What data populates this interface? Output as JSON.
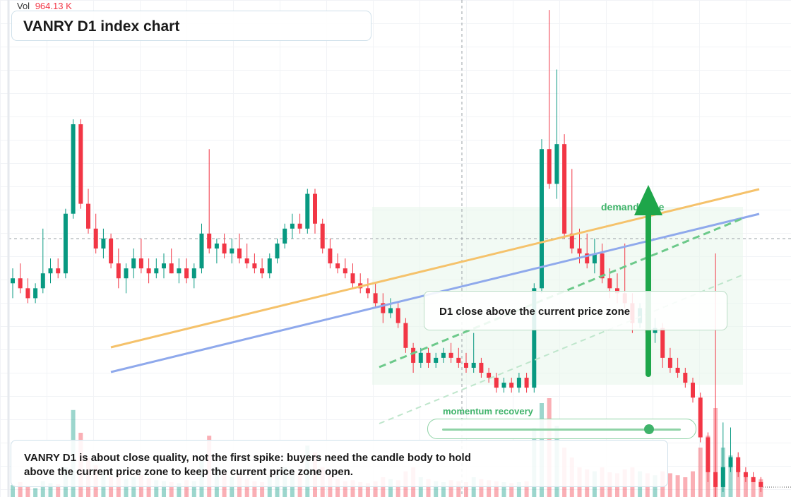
{
  "chart_data": {
    "type": "candlestick",
    "title": "VANRY D1 index chart",
    "volume_label": "Vol",
    "volume_value": "964.13 K",
    "ylim": [
      0,
      100
    ],
    "up_color": "#089981",
    "down_color": "#f23645",
    "open": [
      43,
      44,
      42,
      40,
      42,
      45,
      46,
      45,
      57,
      75,
      59,
      54,
      50,
      52,
      47,
      44,
      46,
      48,
      46,
      45,
      46,
      47,
      45,
      46,
      44,
      46,
      53,
      50,
      51,
      49,
      50,
      48,
      47,
      46,
      45,
      48,
      51,
      54,
      55,
      54,
      61,
      55,
      50,
      47,
      46,
      45,
      43,
      42,
      41,
      39,
      37,
      38,
      35,
      30,
      27,
      29,
      27,
      28,
      29,
      28,
      27,
      26,
      27,
      25,
      24,
      22,
      23,
      22,
      24,
      22,
      42,
      70,
      63,
      71,
      53,
      50,
      49,
      47,
      49,
      44,
      42,
      41,
      39,
      35,
      38,
      33,
      34,
      28,
      26,
      25,
      23,
      20,
      12,
      5,
      2,
      6,
      8,
      5,
      4,
      3
    ],
    "high": [
      46,
      47,
      44,
      43,
      54,
      48,
      48,
      58,
      76,
      76,
      62,
      57,
      54,
      53,
      50,
      47,
      50,
      52,
      48,
      48,
      49,
      50,
      48,
      48,
      47,
      55,
      70,
      52,
      53,
      52,
      53,
      51,
      49,
      48,
      49,
      52,
      55,
      57,
      57,
      62,
      62,
      56,
      52,
      49,
      48,
      47,
      45,
      44,
      43,
      41,
      40,
      39,
      36,
      31,
      30,
      30,
      29,
      30,
      31,
      30,
      29,
      33,
      28,
      26,
      25,
      24,
      24,
      25,
      25,
      43,
      72,
      98,
      86,
      73,
      66,
      54,
      53,
      52,
      51,
      46,
      45,
      51,
      41,
      39,
      40,
      36,
      35,
      30,
      28,
      26,
      24,
      21,
      13,
      49,
      15,
      14,
      9,
      6,
      5,
      4
    ],
    "low": [
      40,
      41,
      39,
      39,
      41,
      43,
      44,
      44,
      56,
      58,
      53,
      49,
      48,
      46,
      42,
      41,
      44,
      45,
      43,
      44,
      44,
      45,
      43,
      43,
      42,
      45,
      49,
      47,
      48,
      47,
      47,
      46,
      45,
      44,
      44,
      47,
      50,
      52,
      53,
      53,
      53,
      49,
      46,
      45,
      44,
      42,
      41,
      40,
      38,
      35,
      36,
      34,
      29,
      25,
      26,
      26,
      26,
      27,
      27,
      26,
      25,
      25,
      24,
      23,
      21,
      21,
      21,
      21,
      21,
      21,
      41,
      62,
      60,
      52,
      49,
      47,
      46,
      45,
      43,
      40,
      39,
      38,
      33,
      34,
      32,
      31,
      26,
      25,
      24,
      22,
      19,
      11,
      3,
      0,
      1,
      5,
      4,
      3,
      3,
      1
    ],
    "close": [
      44,
      42,
      40,
      42,
      45,
      46,
      45,
      57,
      75,
      59,
      54,
      50,
      52,
      47,
      44,
      46,
      48,
      46,
      45,
      46,
      47,
      45,
      46,
      44,
      46,
      53,
      50,
      51,
      49,
      50,
      48,
      47,
      46,
      45,
      48,
      51,
      54,
      55,
      54,
      61,
      55,
      50,
      47,
      46,
      45,
      43,
      42,
      41,
      39,
      37,
      38,
      35,
      30,
      27,
      29,
      27,
      28,
      29,
      28,
      27,
      26,
      27,
      25,
      24,
      22,
      23,
      22,
      24,
      22,
      42,
      70,
      63,
      71,
      53,
      50,
      49,
      47,
      49,
      44,
      42,
      41,
      39,
      35,
      38,
      33,
      34,
      28,
      26,
      25,
      23,
      20,
      12,
      5,
      2,
      6,
      8,
      5,
      4,
      3,
      2
    ],
    "volume": [
      120,
      150,
      110,
      90,
      160,
      140,
      130,
      300,
      880,
      650,
      400,
      320,
      260,
      210,
      240,
      180,
      200,
      220,
      190,
      170,
      160,
      150,
      140,
      170,
      160,
      380,
      620,
      300,
      250,
      200,
      220,
      180,
      160,
      150,
      210,
      260,
      300,
      280,
      240,
      520,
      450,
      300,
      220,
      180,
      160,
      170,
      150,
      140,
      160,
      200,
      180,
      170,
      260,
      300,
      200,
      180,
      160,
      150,
      170,
      160,
      150,
      200,
      180,
      170,
      160,
      150,
      140,
      150,
      160,
      700,
      950,
      1000,
      720,
      500,
      400,
      300,
      280,
      260,
      300,
      250,
      240,
      280,
      300,
      260,
      240,
      220,
      260,
      240,
      220,
      200,
      260,
      500,
      620,
      900,
      500,
      420,
      300,
      240,
      200,
      180
    ],
    "annotations": {
      "zone_label": "demand zone",
      "callout": "D1 close above the current price zone",
      "momentum_label": "momentum recovery",
      "note": "VANRY D1 is about close quality, not the first spike: buyers need the candle body to hold above the current price zone to keep the current price zone open."
    }
  }
}
